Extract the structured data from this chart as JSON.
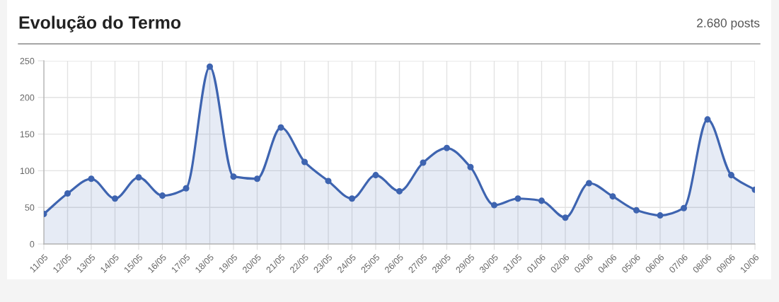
{
  "chart_data": {
    "type": "area",
    "title": "Evolução do Termo",
    "subtitle": "2.680 posts",
    "categories": [
      "11/05",
      "12/05",
      "13/05",
      "14/05",
      "15/05",
      "16/05",
      "17/05",
      "18/05",
      "19/05",
      "20/05",
      "21/05",
      "22/05",
      "23/05",
      "24/05",
      "25/05",
      "26/05",
      "27/05",
      "28/05",
      "29/05",
      "30/05",
      "31/05",
      "01/06",
      "02/06",
      "03/06",
      "04/06",
      "05/06",
      "06/06",
      "07/06",
      "08/06",
      "09/06",
      "10/06"
    ],
    "series": [
      {
        "color": "#3e64b0",
        "values": [
          41,
          69,
          89,
          62,
          91,
          66,
          76,
          242,
          92,
          89,
          159,
          112,
          86,
          62,
          94,
          72,
          111,
          131,
          105,
          53,
          62,
          59,
          36,
          83,
          65,
          46,
          39,
          49,
          170,
          94,
          74
        ]
      }
    ],
    "ylim": [
      0,
      250
    ],
    "yticks": [
      0,
      50,
      100,
      150,
      200,
      250
    ],
    "grid": true,
    "marker": "circle",
    "line_style": "solid"
  }
}
